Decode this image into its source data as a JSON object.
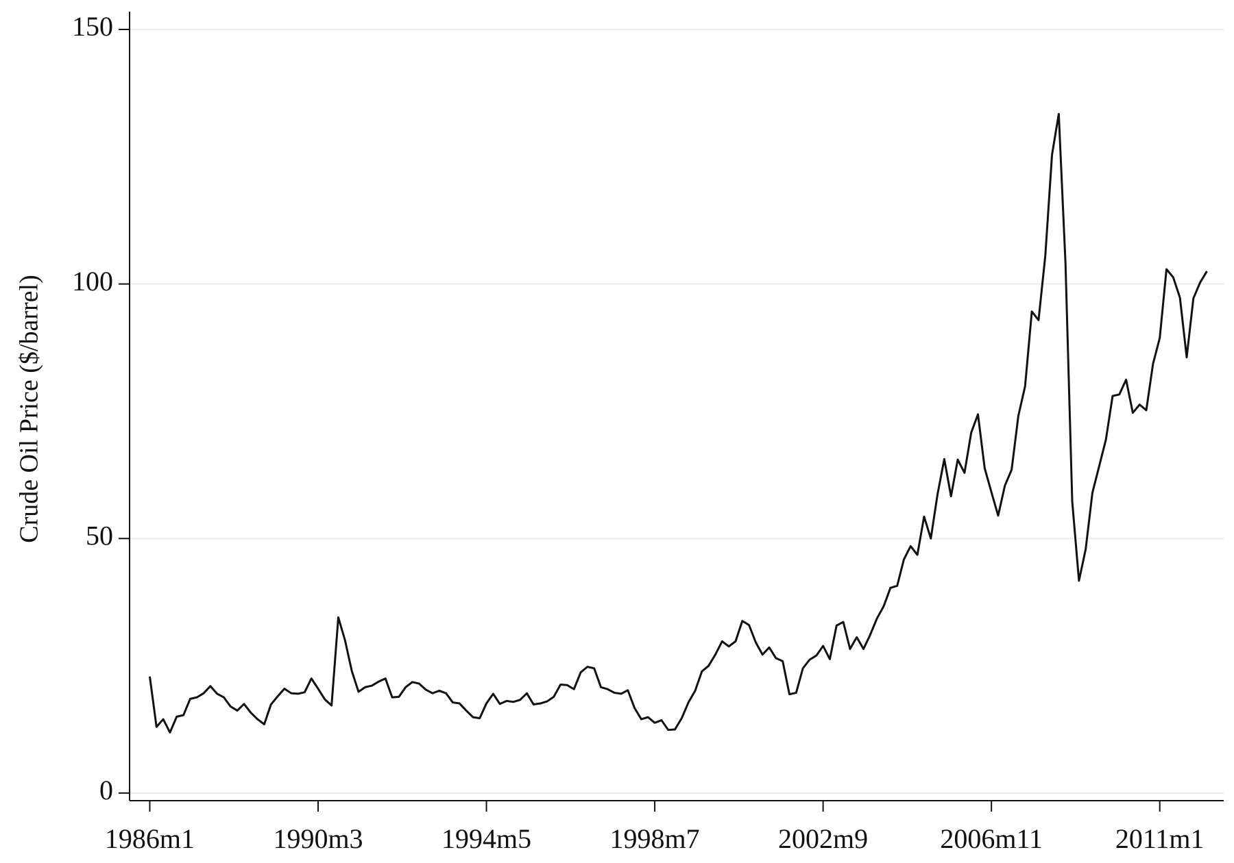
{
  "chart_data": {
    "type": "line",
    "ylabel": "Crude Oil Price ($/barrel)",
    "color": "#111111",
    "grid": true,
    "xlim": [
      306,
      631
    ],
    "ylim": [
      -1.5,
      153.5
    ],
    "yticks": [
      0,
      50,
      100,
      150
    ],
    "xticks": [
      {
        "value": 312,
        "label": "1986m1"
      },
      {
        "value": 362,
        "label": "1990m3"
      },
      {
        "value": 412,
        "label": "1994m5"
      },
      {
        "value": 462,
        "label": "1998m7"
      },
      {
        "value": 512,
        "label": "2002m9"
      },
      {
        "value": 562,
        "label": "2006m11"
      },
      {
        "value": 612,
        "label": "2011m1"
      }
    ],
    "x": [
      312,
      314,
      316,
      318,
      320,
      322,
      324,
      326,
      328,
      330,
      332,
      334,
      336,
      338,
      340,
      342,
      344,
      346,
      348,
      350,
      352,
      354,
      356,
      358,
      360,
      362,
      364,
      366,
      368,
      370,
      372,
      374,
      376,
      378,
      380,
      382,
      384,
      386,
      388,
      390,
      392,
      394,
      396,
      398,
      400,
      402,
      404,
      406,
      408,
      410,
      412,
      414,
      416,
      418,
      420,
      422,
      424,
      426,
      428,
      430,
      432,
      434,
      436,
      438,
      440,
      442,
      444,
      446,
      448,
      450,
      452,
      454,
      456,
      458,
      460,
      462,
      464,
      466,
      468,
      470,
      472,
      474,
      476,
      478,
      480,
      482,
      484,
      486,
      488,
      490,
      492,
      494,
      496,
      498,
      500,
      502,
      504,
      506,
      508,
      510,
      512,
      514,
      516,
      518,
      520,
      522,
      524,
      526,
      528,
      530,
      532,
      534,
      536,
      538,
      540,
      542,
      544,
      546,
      548,
      550,
      552,
      554,
      556,
      558,
      560,
      562,
      564,
      566,
      568,
      570,
      572,
      574,
      576,
      578,
      580,
      582,
      584,
      586,
      588,
      590,
      592,
      594,
      596,
      598,
      600,
      602,
      604,
      606,
      608,
      610,
      612,
      614,
      616,
      618,
      620,
      622,
      624,
      626
    ],
    "values": [
      22.9,
      13,
      14.5,
      11.9,
      15,
      15.3,
      18.5,
      18.8,
      19.6,
      21,
      19.5,
      18.8,
      17,
      16.2,
      17.5,
      15.8,
      14.5,
      13.5,
      17.4,
      19,
      20.5,
      19.6,
      19.5,
      19.8,
      22.5,
      20.5,
      18.4,
      17.2,
      34.5,
      30,
      24,
      19.9,
      20.8,
      21.1,
      21.9,
      22.5,
      18.8,
      18.9,
      20.8,
      21.8,
      21.5,
      20.3,
      19.6,
      20.1,
      19.6,
      17.8,
      17.6,
      16.2,
      14.9,
      14.7,
      17.6,
      19.5,
      17.5,
      18.1,
      17.9,
      18.3,
      19.6,
      17.4,
      17.6,
      18,
      18.9,
      21.3,
      21.2,
      20.4,
      23.7,
      24.8,
      24.5,
      20.8,
      20.4,
      19.7,
      19.5,
      20.2,
      16.7,
      14.5,
      14.9,
      13.8,
      14.3,
      12.4,
      12.5,
      14.7,
      17.8,
      20.1,
      23.9,
      25,
      27.2,
      29.8,
      28.8,
      29.8,
      33.8,
      33,
      29.6,
      27.2,
      28.6,
      26.5,
      25.9,
      19.4,
      19.7,
      24.5,
      26.2,
      27,
      28.9,
      26.3,
      32.9,
      33.6,
      28.3,
      30.6,
      28.3,
      31.1,
      34.3,
      36.7,
      40.3,
      40.7,
      45.9,
      48.5,
      46.8,
      54.3,
      50,
      58.7,
      65.6,
      58.3,
      65.5,
      62.9,
      70.8,
      74.4,
      63.8,
      59.1,
      54.5,
      60.4,
      63.5,
      74.1,
      79.9,
      94.6,
      92.9,
      105.5,
      125.4,
      133.4,
      104.1,
      57.3,
      41.7,
      47.9,
      59,
      64.2,
      69.4,
      78,
      78.3,
      81.2,
      74.7,
      76.3,
      75.2,
      84.3,
      89.4,
      102.9,
      101.3,
      97.3,
      85.6,
      97.2,
      100.3,
      102.5
    ]
  }
}
